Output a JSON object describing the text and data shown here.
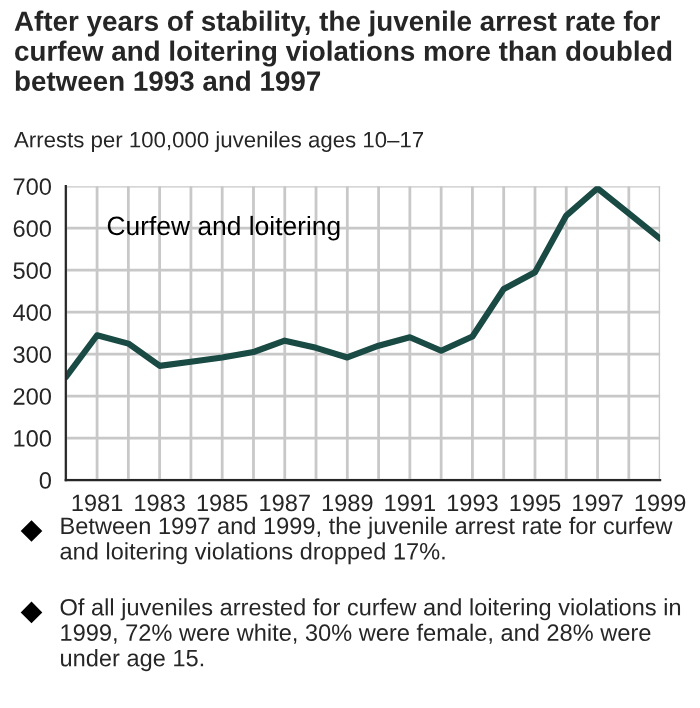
{
  "chart_data": {
    "type": "line",
    "title": "After years of stability, the juvenile arrest rate for curfew and loitering violations more than doubled between 1993 and 1997",
    "ylabel": "Arrests per 100,000 juveniles ages 10–17",
    "x": [
      1980,
      1981,
      1982,
      1983,
      1984,
      1985,
      1986,
      1987,
      1988,
      1989,
      1990,
      1991,
      1992,
      1993,
      1994,
      1995,
      1996,
      1997,
      1998,
      1999
    ],
    "series": [
      {
        "name": "Curfew and loitering",
        "color": "#1a4a44",
        "values": [
          245,
          345,
          325,
          272,
          282,
          292,
          305,
          332,
          315,
          292,
          320,
          340,
          308,
          342,
          455,
          495,
          630,
          695,
          635,
          575
        ]
      }
    ],
    "xlim": [
      1980,
      1999
    ],
    "xticks": [
      {
        "value": 1980,
        "label": null
      },
      1981,
      {
        "value": 1982,
        "label": null
      },
      1983,
      {
        "value": 1984,
        "label": null
      },
      1985,
      {
        "value": 1986,
        "label": null
      },
      1987,
      {
        "value": 1988,
        "label": null
      },
      1989,
      {
        "value": 1990,
        "label": null
      },
      1991,
      {
        "value": 1992,
        "label": null
      },
      1993,
      {
        "value": 1994,
        "label": null
      },
      1995,
      {
        "value": 1996,
        "label": null
      },
      1997,
      {
        "value": 1998,
        "label": null
      },
      1999
    ],
    "ylim": [
      0,
      700
    ],
    "yticks": [
      0,
      100,
      200,
      300,
      400,
      500,
      600,
      700
    ],
    "grid": true,
    "legend": false,
    "marker": "none",
    "line_style": "solid",
    "annotations": [
      "Between 1997 and 1999, the juvenile arrest rate for curfew and loitering violations dropped 17%.",
      "Of all juveniles arrested for curfew and loitering violations in 1999, 72% were white, 30% were female, and 28% were under age 15."
    ]
  }
}
